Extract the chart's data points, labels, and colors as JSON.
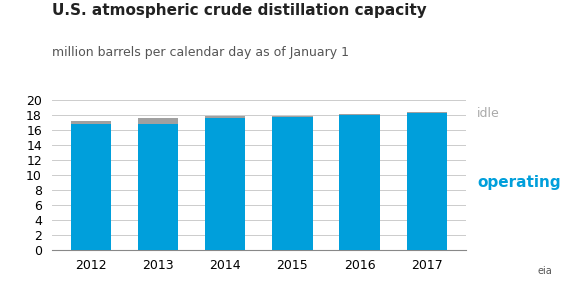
{
  "title": "U.S. atmospheric crude distillation capacity",
  "subtitle": "million barrels per calendar day as of January 1",
  "years": [
    "2012",
    "2013",
    "2014",
    "2015",
    "2016",
    "2017"
  ],
  "operating": [
    16.8,
    16.9,
    17.7,
    17.8,
    18.1,
    18.3
  ],
  "idle": [
    0.5,
    0.8,
    0.2,
    0.1,
    0.15,
    0.15
  ],
  "operating_color": "#009fdb",
  "idle_color": "#a0a0a0",
  "ylim": [
    0,
    20
  ],
  "yticks": [
    0,
    2,
    4,
    6,
    8,
    10,
    12,
    14,
    16,
    18,
    20
  ],
  "grid_color": "#cccccc",
  "label_idle": "idle",
  "label_operating": "operating",
  "label_color_idle": "#aaaaaa",
  "label_color_operating": "#009fdb",
  "title_fontsize": 11,
  "subtitle_fontsize": 9,
  "tick_fontsize": 9,
  "annotation_fontsize_idle": 9,
  "annotation_fontsize_operating": 11,
  "bar_width": 0.6,
  "background_color": "#ffffff"
}
